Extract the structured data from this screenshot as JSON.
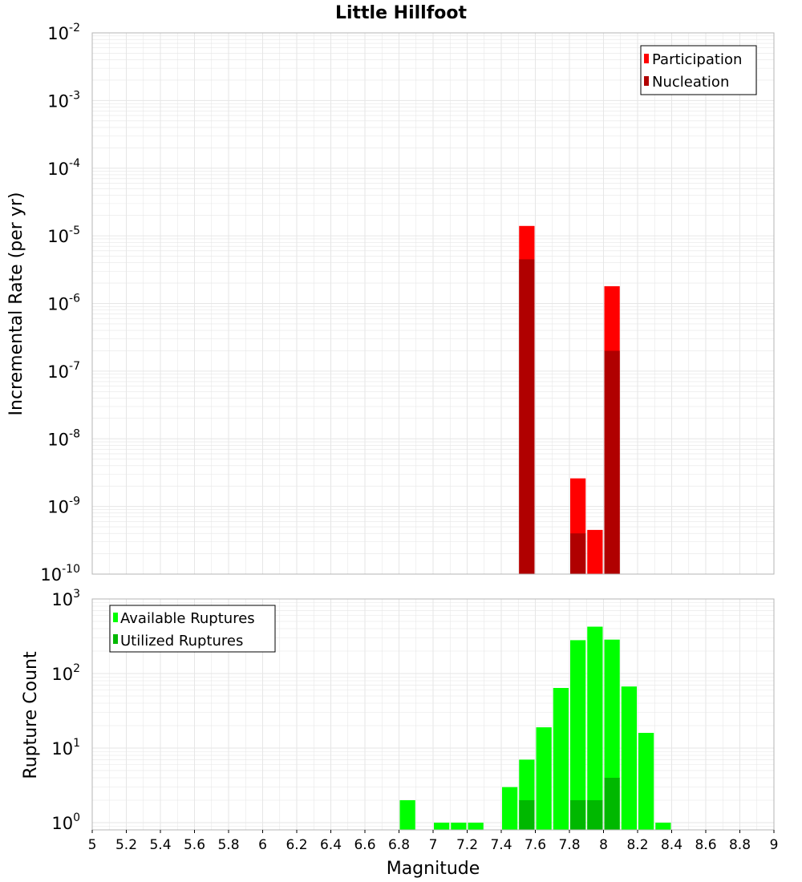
{
  "figure": {
    "title": "Little Hillfoot",
    "xlabel": "Magnitude"
  },
  "colors": {
    "participation": "#ff0000",
    "nucleation": "#b00000",
    "available": "#00ff00",
    "utilized": "#00b800",
    "grid": "#e6e6e6",
    "frame": "#b4b4b4"
  },
  "chart_data": [
    {
      "type": "bar",
      "title": "Little Hillfoot",
      "ylabel": "Incremental Rate (per yr)",
      "yscale": "log",
      "ylim": [
        1e-10,
        0.01
      ],
      "xlim": [
        5,
        9
      ],
      "grid": true,
      "legend": "top-right",
      "y_ticks": [
        {
          "base": "10",
          "exp": "-2"
        },
        {
          "base": "10",
          "exp": "-3"
        },
        {
          "base": "10",
          "exp": "-4"
        },
        {
          "base": "10",
          "exp": "-5"
        },
        {
          "base": "10",
          "exp": "-6"
        },
        {
          "base": "10",
          "exp": "-7"
        },
        {
          "base": "10",
          "exp": "-8"
        },
        {
          "base": "10",
          "exp": "-9"
        },
        {
          "base": "10",
          "exp": "-10"
        }
      ],
      "series": [
        {
          "name": "Participation",
          "color": "#ff0000",
          "x": [
            7.55,
            7.85,
            7.95,
            8.05
          ],
          "values": [
            1.4e-05,
            2.6e-09,
            4.5e-10,
            1.8e-06
          ]
        },
        {
          "name": "Nucleation",
          "color": "#b00000",
          "x": [
            7.55,
            7.85,
            8.05
          ],
          "values": [
            4.5e-06,
            4e-10,
            2e-07
          ]
        }
      ]
    },
    {
      "type": "bar",
      "ylabel": "Rupture Count",
      "xlabel": "Magnitude",
      "yscale": "log",
      "ylim": [
        0.8,
        1000
      ],
      "xlim": [
        5,
        9
      ],
      "grid": true,
      "legend": "top-left",
      "y_ticks": [
        {
          "base": "10",
          "exp": "3"
        },
        {
          "base": "10",
          "exp": "2"
        },
        {
          "base": "10",
          "exp": "1"
        },
        {
          "base": "10",
          "exp": "0"
        }
      ],
      "x_ticks": [
        "5",
        "5.2",
        "5.4",
        "5.6",
        "5.8",
        "6",
        "6.2",
        "6.4",
        "6.6",
        "6.8",
        "7",
        "7.2",
        "7.4",
        "7.6",
        "7.8",
        "8",
        "8.2",
        "8.4",
        "8.6",
        "8.8",
        "9"
      ],
      "series": [
        {
          "name": "Available Ruptures",
          "color": "#00ff00",
          "x": [
            6.85,
            7.05,
            7.15,
            7.25,
            7.45,
            7.55,
            7.65,
            7.75,
            7.85,
            7.95,
            8.05,
            8.15,
            8.25,
            8.35
          ],
          "values": [
            2,
            1,
            1,
            1,
            3,
            7,
            19,
            64,
            280,
            425,
            285,
            67,
            16,
            1
          ]
        },
        {
          "name": "Utilized Ruptures",
          "color": "#00b800",
          "x": [
            7.55,
            7.85,
            7.95,
            8.05
          ],
          "values": [
            2,
            2,
            2,
            4
          ]
        }
      ]
    }
  ]
}
